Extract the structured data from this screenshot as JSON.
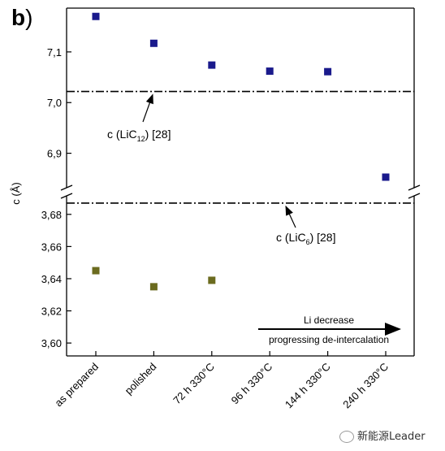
{
  "panel_label": "b",
  "panel_paren": ")",
  "watermark": "新能源Leader",
  "chart_data": {
    "type": "scatter",
    "categories": [
      "as prepared",
      "polished",
      "72 h 330°C",
      "96 h 330°C",
      "144 h 330°C",
      "240 h 330°C"
    ],
    "ylabel": "c (Å)",
    "upper_segment": {
      "ylim": [
        6.84,
        7.18
      ],
      "ticks": [
        6.9,
        7.0,
        7.1
      ],
      "tick_labels": [
        "6,9",
        "7,0",
        "7,1"
      ]
    },
    "lower_segment": {
      "ylim": [
        3.594,
        3.69
      ],
      "ticks": [
        3.6,
        3.62,
        3.64,
        3.66,
        3.68
      ],
      "tick_labels": [
        "3,60",
        "3,62",
        "3,64",
        "3,66",
        "3,68"
      ]
    },
    "series": [
      {
        "color": "#1a1a8c",
        "segment": "upper",
        "points": [
          {
            "category": "as prepared",
            "y": 7.17
          },
          {
            "category": "polished",
            "y": 7.117
          },
          {
            "category": "72 h 330°C",
            "y": 7.074
          },
          {
            "category": "96 h 330°C",
            "y": 7.062
          },
          {
            "category": "144 h 330°C",
            "y": 7.061
          }
        ]
      },
      {
        "color": "#1a1a8c",
        "segment": "lower-break",
        "points": [
          {
            "category": "240 h 330°C",
            "y": 6.848
          }
        ]
      },
      {
        "color": "#6b6b1f",
        "segment": "lower",
        "points": [
          {
            "category": "as prepared",
            "y": 3.645
          },
          {
            "category": "polished",
            "y": 3.635
          },
          {
            "category": "72 h 330°C",
            "y": 3.639
          }
        ]
      }
    ],
    "reference_lines": [
      {
        "segment": "upper",
        "y": 7.022,
        "label_prefix": "c (LiC",
        "label_sub": "12",
        "label_suffix": ") [28]"
      },
      {
        "segment": "lower",
        "y": 3.687,
        "label_prefix": "c (LiC",
        "label_sub": "6",
        "label_suffix": ") [28]"
      }
    ],
    "arrow_annotation": {
      "line1": "Li decrease",
      "line2": "progressing de-intercalation"
    }
  }
}
